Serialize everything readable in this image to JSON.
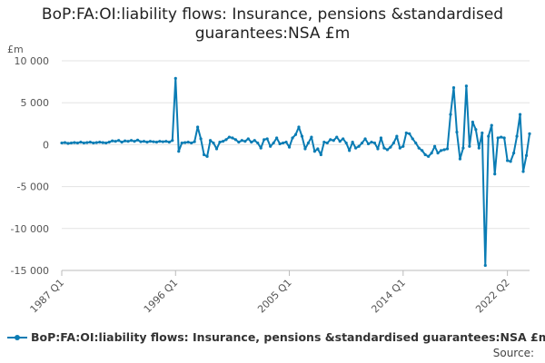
{
  "chart_data": {
    "type": "line",
    "title": "BoP:FA:OI:liability flows: Insurance, pensions &standardised guarantees:NSA £m",
    "ylabel": "£m",
    "xlabel": "",
    "ylim": [
      -15000,
      10000
    ],
    "yticks": [
      10000,
      5000,
      0,
      -5000,
      -10000,
      -15000
    ],
    "ytick_labels": [
      "10 000",
      "5 000",
      "0",
      "-5 000",
      "-10 000",
      "-15 000"
    ],
    "xtick_labels": [
      "1987 Q1",
      "1996 Q1",
      "2005 Q1",
      "2014 Q1",
      "2022 Q2"
    ],
    "xtick_index": [
      0,
      36,
      72,
      108,
      141
    ],
    "grid": "horizontal",
    "legend_position": "bottom",
    "series": [
      {
        "name": "BoP:FA:OI:liability flows: Insurance, pensions &standardised guarantees:NSA £m",
        "color": "#0a7cb4",
        "values": [
          200,
          250,
          150,
          200,
          250,
          200,
          300,
          200,
          250,
          300,
          200,
          250,
          300,
          250,
          200,
          300,
          450,
          400,
          500,
          300,
          450,
          400,
          500,
          400,
          550,
          350,
          400,
          300,
          400,
          350,
          300,
          400,
          350,
          400,
          300,
          500,
          7900,
          -800,
          200,
          250,
          300,
          200,
          350,
          2100,
          700,
          -1200,
          -1400,
          500,
          200,
          -500,
          300,
          400,
          600,
          900,
          800,
          600,
          300,
          500,
          400,
          700,
          300,
          500,
          200,
          -400,
          600,
          700,
          -200,
          200,
          800,
          100,
          200,
          300,
          -300,
          800,
          1200,
          2100,
          1000,
          -500,
          200,
          900,
          -800,
          -500,
          -1200,
          300,
          200,
          600,
          500,
          900,
          400,
          700,
          200,
          -700,
          300,
          -400,
          -200,
          200,
          700,
          100,
          300,
          200,
          -500,
          800,
          -400,
          -600,
          -300,
          200,
          1000,
          -400,
          -200,
          1400,
          1300,
          700,
          200,
          -400,
          -700,
          -1200,
          -1400,
          -1000,
          -200,
          -1000,
          -700,
          -600,
          -500,
          3600,
          6800,
          1500,
          -1700,
          -400,
          7000,
          -200,
          2700,
          1800,
          -400,
          1400,
          -14400,
          1000,
          2300,
          -3500,
          800,
          900,
          800,
          -1900,
          -2000,
          -1000,
          1000,
          3600,
          -3200,
          -1300,
          1300
        ]
      }
    ]
  },
  "source_label": "Source:"
}
